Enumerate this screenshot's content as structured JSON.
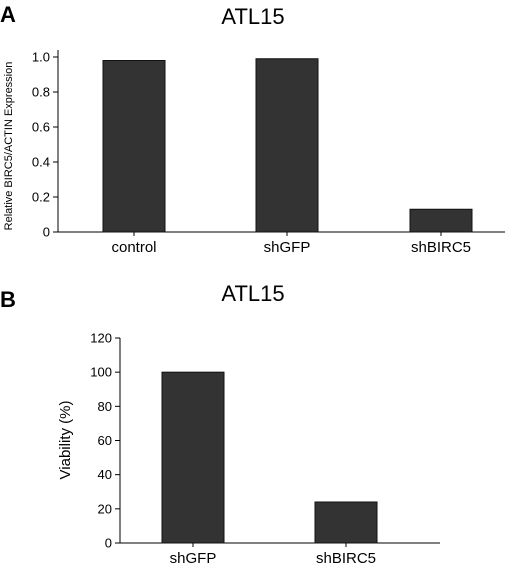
{
  "chart_data": [
    {
      "type": "bar",
      "panel": "A",
      "title": "ATL15",
      "ylabel": "Relative BIRC5/ACTIN Expression",
      "xlabel": "",
      "categories": [
        "control",
        "shGFP",
        "shBIRC5"
      ],
      "values": [
        0.98,
        0.99,
        0.13
      ],
      "ylim": [
        0,
        1.0
      ],
      "yticks": [
        "0",
        "0.2",
        "0.4",
        "0.6",
        "0.8",
        "1.0"
      ],
      "grid": false,
      "bar_color": "#333333"
    },
    {
      "type": "bar",
      "panel": "B",
      "title": "ATL15",
      "ylabel": "Viability (%)",
      "xlabel": "",
      "categories": [
        "shGFP",
        "shBIRC5"
      ],
      "values": [
        100,
        24
      ],
      "ylim": [
        0,
        120
      ],
      "yticks": [
        "0",
        "20",
        "40",
        "60",
        "80",
        "100",
        "120"
      ],
      "grid": false,
      "bar_color": "#333333"
    }
  ]
}
